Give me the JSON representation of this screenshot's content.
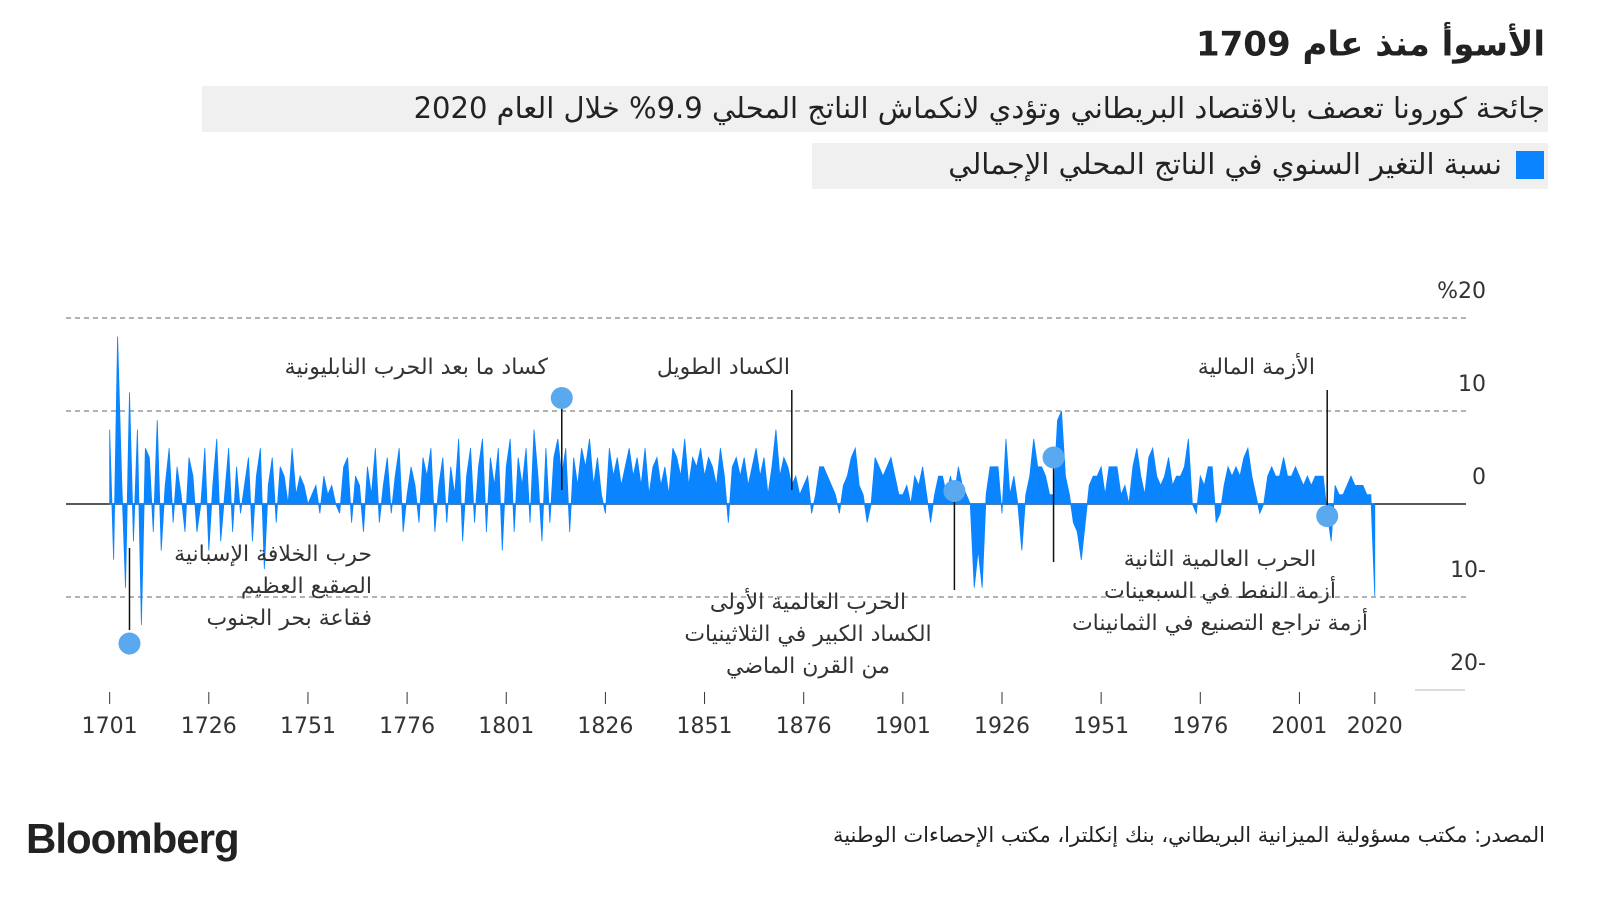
{
  "title": "الأسوأ منذ عام 1709",
  "subtitle": "جائحة كورونا تعصف بالاقتصاد البريطاني وتؤدي لانكماش الناتج المحلي 9.9% خلال العام 2020",
  "source": "المصدر: مكتب مسؤولية الميزانية البريطاني، بنك إنكلترا، مكتب الإحصاءات الوطنية",
  "brand": "Bloomberg",
  "chart_data": {
    "type": "area",
    "x": [
      1701,
      1702,
      1703,
      1704,
      1705,
      1706,
      1707,
      1708,
      1709,
      1710,
      1711,
      1712,
      1713,
      1714,
      1715,
      1716,
      1717,
      1718,
      1719,
      1720,
      1721,
      1722,
      1723,
      1724,
      1725,
      1726,
      1727,
      1728,
      1729,
      1730,
      1731,
      1732,
      1733,
      1734,
      1735,
      1736,
      1737,
      1738,
      1739,
      1740,
      1741,
      1742,
      1743,
      1744,
      1745,
      1746,
      1747,
      1748,
      1749,
      1750,
      1751,
      1752,
      1753,
      1754,
      1755,
      1756,
      1757,
      1758,
      1759,
      1760,
      1761,
      1762,
      1763,
      1764,
      1765,
      1766,
      1767,
      1768,
      1769,
      1770,
      1771,
      1772,
      1773,
      1774,
      1775,
      1776,
      1777,
      1778,
      1779,
      1780,
      1781,
      1782,
      1783,
      1784,
      1785,
      1786,
      1787,
      1788,
      1789,
      1790,
      1791,
      1792,
      1793,
      1794,
      1795,
      1796,
      1797,
      1798,
      1799,
      1800,
      1801,
      1802,
      1803,
      1804,
      1805,
      1806,
      1807,
      1808,
      1809,
      1810,
      1811,
      1812,
      1813,
      1814,
      1815,
      1816,
      1817,
      1818,
      1819,
      1820,
      1821,
      1822,
      1823,
      1824,
      1825,
      1826,
      1827,
      1828,
      1829,
      1830,
      1831,
      1832,
      1833,
      1834,
      1835,
      1836,
      1837,
      1838,
      1839,
      1840,
      1841,
      1842,
      1843,
      1844,
      1845,
      1846,
      1847,
      1848,
      1849,
      1850,
      1851,
      1852,
      1853,
      1854,
      1855,
      1856,
      1857,
      1858,
      1859,
      1860,
      1861,
      1862,
      1863,
      1864,
      1865,
      1866,
      1867,
      1868,
      1869,
      1870,
      1871,
      1872,
      1873,
      1874,
      1875,
      1876,
      1877,
      1878,
      1879,
      1880,
      1881,
      1882,
      1883,
      1884,
      1885,
      1886,
      1887,
      1888,
      1889,
      1890,
      1891,
      1892,
      1893,
      1894,
      1895,
      1896,
      1897,
      1898,
      1899,
      1900,
      1901,
      1902,
      1903,
      1904,
      1905,
      1906,
      1907,
      1908,
      1909,
      1910,
      1911,
      1912,
      1913,
      1914,
      1915,
      1916,
      1917,
      1918,
      1919,
      1920,
      1921,
      1922,
      1923,
      1924,
      1925,
      1926,
      1927,
      1928,
      1929,
      1930,
      1931,
      1932,
      1933,
      1934,
      1935,
      1936,
      1937,
      1938,
      1939,
      1940,
      1941,
      1942,
      1943,
      1944,
      1945,
      1946,
      1947,
      1948,
      1949,
      1950,
      1951,
      1952,
      1953,
      1954,
      1955,
      1956,
      1957,
      1958,
      1959,
      1960,
      1961,
      1962,
      1963,
      1964,
      1965,
      1966,
      1967,
      1968,
      1969,
      1970,
      1971,
      1972,
      1973,
      1974,
      1975,
      1976,
      1977,
      1978,
      1979,
      1980,
      1981,
      1982,
      1983,
      1984,
      1985,
      1986,
      1987,
      1988,
      1989,
      1990,
      1991,
      1992,
      1993,
      1994,
      1995,
      1996,
      1997,
      1998,
      1999,
      2000,
      2001,
      2002,
      2003,
      2004,
      2005,
      2006,
      2007,
      2008,
      2009,
      2010,
      2011,
      2012,
      2013,
      2014,
      2015,
      2016,
      2017,
      2018,
      2019,
      2020
    ],
    "series": [
      {
        "name": "نسبة التغير السنوي في الناتج المحلي الإجمالي",
        "color": "#0a84ff",
        "values": [
          8,
          -6,
          18,
          3,
          -9,
          12,
          -4,
          8,
          -13,
          6,
          5,
          -3,
          9,
          -5,
          2,
          6,
          -2,
          4,
          1,
          -3,
          5,
          3,
          -3,
          0,
          6,
          -5,
          2,
          7,
          -4,
          1,
          6,
          -3,
          4,
          -1,
          2,
          5,
          -4,
          3,
          6,
          -7,
          2,
          5,
          -2,
          4,
          3,
          0,
          6,
          1,
          3,
          2,
          0,
          1,
          2,
          -1,
          3,
          1,
          2,
          0,
          -1,
          4,
          5,
          -2,
          3,
          2,
          -3,
          4,
          1,
          6,
          -2,
          2,
          5,
          -1,
          3,
          6,
          -3,
          1,
          4,
          2,
          -2,
          5,
          3,
          6,
          -3,
          2,
          5,
          -2,
          4,
          1,
          7,
          -4,
          3,
          6,
          -2,
          4,
          7,
          -3,
          5,
          2,
          6,
          -5,
          4,
          7,
          -3,
          5,
          2,
          6,
          -2,
          8,
          3,
          -4,
          6,
          -2,
          5,
          7,
          3,
          6,
          -3,
          5,
          2,
          6,
          4,
          7,
          2,
          5,
          1,
          -1,
          6,
          3,
          5,
          2,
          4,
          6,
          3,
          5,
          2,
          6,
          1,
          4,
          5,
          2,
          4,
          1,
          6,
          5,
          3,
          7,
          2,
          5,
          4,
          6,
          3,
          5,
          4,
          2,
          6,
          3,
          -2,
          4,
          5,
          3,
          5,
          2,
          4,
          6,
          3,
          5,
          1,
          4,
          8,
          3,
          5,
          4,
          2,
          3,
          1,
          2,
          3,
          -1,
          1,
          4,
          4,
          3,
          2,
          1,
          -1,
          2,
          3,
          5,
          6,
          2,
          1,
          -2,
          0,
          5,
          4,
          3,
          4,
          5,
          3,
          1,
          1,
          2,
          0,
          3,
          2,
          4,
          1,
          -2,
          1,
          3,
          3,
          1,
          3,
          1,
          4,
          2,
          1,
          0,
          -9,
          -5,
          -9,
          1,
          4,
          4,
          4,
          -1,
          7,
          1,
          3,
          0,
          -5,
          1,
          3,
          7,
          4,
          4,
          3,
          1,
          1,
          9,
          10,
          3,
          1,
          -2,
          -3,
          -6,
          -2,
          2,
          3,
          3,
          4,
          1,
          4,
          4,
          4,
          1,
          2,
          0,
          4,
          6,
          3,
          1,
          5,
          6,
          3,
          2,
          3,
          5,
          2,
          3,
          3,
          4,
          7,
          0,
          -1,
          3,
          2,
          4,
          4,
          -2,
          -1,
          2,
          4,
          3,
          4,
          3,
          5,
          6,
          3,
          1,
          -1,
          0,
          3,
          4,
          3,
          3,
          5,
          3,
          3,
          4,
          3,
          2,
          3,
          2,
          3,
          3,
          3,
          -1,
          -4,
          2,
          1,
          1,
          2,
          3,
          2,
          2,
          2,
          1,
          1,
          -9.9
        ]
      }
    ],
    "xlim": [
      1691,
      2043
    ],
    "xticks": [
      1701,
      1726,
      1751,
      1776,
      1801,
      1826,
      1851,
      1876,
      1901,
      1926,
      1951,
      1976,
      2001,
      2020
    ],
    "ylim": [
      -20,
      20
    ],
    "yticks": [
      {
        "value": 20,
        "label": "%20"
      },
      10,
      0,
      {
        "value": -10,
        "label": "10-"
      },
      {
        "value": -20,
        "label": "20-"
      }
    ],
    "grid": true,
    "annotations": [
      {
        "lines": [
          "حرب الخلافة الإسبانية",
          "الصقيع العظيم",
          "فقاعة بحر الجنوب"
        ],
        "x": 1706,
        "y": -15
      },
      {
        "lines": [
          "كساد ما بعد الحرب النابليونية"
        ],
        "x": 1815,
        "y": 11.4
      },
      {
        "lines": [
          "الكساد الطويل"
        ],
        "x": 1873
      },
      {
        "lines": [
          "الحرب العالمية الأولى",
          "الكساد الكبير في الثلاثينيات",
          "من القرن الماضي"
        ],
        "x": 1914,
        "y": 1.4
      },
      {
        "lines": [
          "الحرب العالمية الثانية",
          "أزمة النفط في السبعينات",
          "أزمة تراجع التصنيع في الثمانينات"
        ],
        "x": 1939,
        "y": 5
      },
      {
        "lines": [
          "الأزمة المالية"
        ],
        "x": 2008,
        "y": -1.3
      }
    ]
  }
}
